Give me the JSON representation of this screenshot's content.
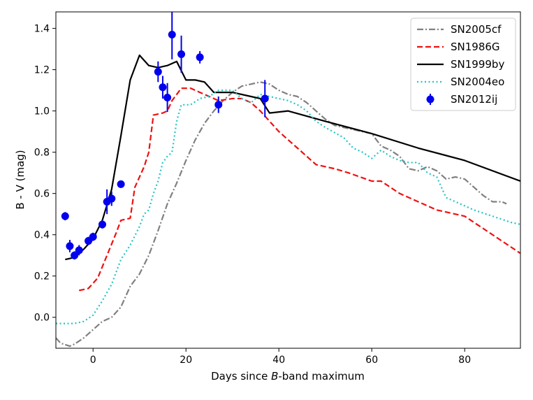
{
  "chart_data": {
    "type": "line",
    "title": "",
    "xlabel_pre": "Days since ",
    "xlabel_em": "B",
    "xlabel_post": "-band maximum",
    "ylabel": "B - V (mag)",
    "xlim": [
      -8,
      92
    ],
    "ylim": [
      -0.15,
      1.48
    ],
    "xticks": [
      0,
      20,
      40,
      60,
      80
    ],
    "yticks": [
      0.0,
      0.2,
      0.4,
      0.6,
      0.8,
      1.0,
      1.2,
      1.4
    ],
    "ytick_labels": [
      "0.0",
      "0.2",
      "0.4",
      "0.6",
      "0.8",
      "1.0",
      "1.2",
      "1.4"
    ],
    "legend_position": "top-right",
    "series": [
      {
        "name": "SN2005cf",
        "color": "#808080",
        "dash": "dashdot",
        "points": [
          [
            -8,
            -0.1
          ],
          [
            -7,
            -0.125
          ],
          [
            -5,
            -0.14
          ],
          [
            -4,
            -0.13
          ],
          [
            -2,
            -0.1
          ],
          [
            0,
            -0.06
          ],
          [
            2,
            -0.02
          ],
          [
            4,
            0.0
          ],
          [
            6,
            0.05
          ],
          [
            7,
            0.1
          ],
          [
            8,
            0.15
          ],
          [
            10,
            0.21
          ],
          [
            12,
            0.3
          ],
          [
            14,
            0.42
          ],
          [
            16,
            0.55
          ],
          [
            18,
            0.65
          ],
          [
            20,
            0.76
          ],
          [
            22,
            0.86
          ],
          [
            24,
            0.94
          ],
          [
            26,
            1.0
          ],
          [
            28,
            1.05
          ],
          [
            30,
            1.09
          ],
          [
            32,
            1.12
          ],
          [
            34,
            1.13
          ],
          [
            36,
            1.14
          ],
          [
            38,
            1.13
          ],
          [
            40,
            1.1
          ],
          [
            42,
            1.08
          ],
          [
            44,
            1.07
          ],
          [
            46,
            1.04
          ],
          [
            48,
            1.0
          ],
          [
            50,
            0.96
          ],
          [
            52,
            0.93
          ],
          [
            54,
            0.92
          ],
          [
            56,
            0.91
          ],
          [
            58,
            0.9
          ],
          [
            60,
            0.89
          ],
          [
            62,
            0.83
          ],
          [
            64,
            0.81
          ],
          [
            66,
            0.78
          ],
          [
            68,
            0.72
          ],
          [
            70,
            0.71
          ],
          [
            72,
            0.73
          ],
          [
            74,
            0.71
          ],
          [
            76,
            0.67
          ],
          [
            78,
            0.68
          ],
          [
            80,
            0.67
          ],
          [
            82,
            0.63
          ],
          [
            84,
            0.59
          ],
          [
            86,
            0.56
          ],
          [
            88,
            0.56
          ],
          [
            89,
            0.55
          ]
        ]
      },
      {
        "name": "SN1986G",
        "color": "#ee1111",
        "dash": "dashed",
        "points": [
          [
            -3,
            0.13
          ],
          [
            -1,
            0.14
          ],
          [
            1,
            0.19
          ],
          [
            3,
            0.3
          ],
          [
            5,
            0.41
          ],
          [
            6,
            0.47
          ],
          [
            8,
            0.48
          ],
          [
            9,
            0.63
          ],
          [
            11,
            0.73
          ],
          [
            12,
            0.8
          ],
          [
            13,
            0.98
          ],
          [
            15,
            0.99
          ],
          [
            16,
            1.0
          ],
          [
            17,
            1.05
          ],
          [
            18,
            1.08
          ],
          [
            19,
            1.11
          ],
          [
            21,
            1.11
          ],
          [
            23,
            1.09
          ],
          [
            25,
            1.07
          ],
          [
            27,
            1.05
          ],
          [
            30,
            1.06
          ],
          [
            32,
            1.06
          ],
          [
            34,
            1.04
          ],
          [
            36,
            1.0
          ],
          [
            38,
            0.95
          ],
          [
            40,
            0.9
          ],
          [
            44,
            0.82
          ],
          [
            48,
            0.74
          ],
          [
            52,
            0.72
          ],
          [
            55,
            0.7
          ],
          [
            60,
            0.66
          ],
          [
            62,
            0.66
          ],
          [
            66,
            0.6
          ],
          [
            70,
            0.56
          ],
          [
            74,
            0.52
          ],
          [
            78,
            0.5
          ],
          [
            80,
            0.49
          ],
          [
            84,
            0.43
          ],
          [
            88,
            0.37
          ],
          [
            92,
            0.31
          ]
        ]
      },
      {
        "name": "SN1999by",
        "color": "#000000",
        "dash": "solid",
        "points": [
          [
            -6,
            0.28
          ],
          [
            -4,
            0.29
          ],
          [
            -2,
            0.33
          ],
          [
            0,
            0.38
          ],
          [
            2,
            0.47
          ],
          [
            4,
            0.62
          ],
          [
            6,
            0.88
          ],
          [
            8,
            1.15
          ],
          [
            10,
            1.27
          ],
          [
            12,
            1.22
          ],
          [
            14,
            1.21
          ],
          [
            16,
            1.22
          ],
          [
            18,
            1.24
          ],
          [
            20,
            1.15
          ],
          [
            22,
            1.15
          ],
          [
            24,
            1.14
          ],
          [
            26,
            1.09
          ],
          [
            30,
            1.09
          ],
          [
            34,
            1.07
          ],
          [
            36,
            1.06
          ],
          [
            38,
            0.99
          ],
          [
            42,
            1.0
          ],
          [
            50,
            0.95
          ],
          [
            60,
            0.89
          ],
          [
            70,
            0.82
          ],
          [
            80,
            0.76
          ],
          [
            92,
            0.66
          ]
        ]
      },
      {
        "name": "SN2004eo",
        "color": "#22c4c4",
        "dash": "dotted",
        "points": [
          [
            -8,
            -0.03
          ],
          [
            -4,
            -0.03
          ],
          [
            -2,
            -0.02
          ],
          [
            0,
            0.01
          ],
          [
            2,
            0.08
          ],
          [
            4,
            0.16
          ],
          [
            6,
            0.28
          ],
          [
            8,
            0.35
          ],
          [
            10,
            0.44
          ],
          [
            11,
            0.5
          ],
          [
            12,
            0.52
          ],
          [
            13,
            0.6
          ],
          [
            14,
            0.66
          ],
          [
            15,
            0.75
          ],
          [
            16,
            0.78
          ],
          [
            17,
            0.8
          ],
          [
            18,
            0.95
          ],
          [
            19,
            1.03
          ],
          [
            21,
            1.03
          ],
          [
            23,
            1.06
          ],
          [
            25,
            1.07
          ],
          [
            27,
            1.1
          ],
          [
            30,
            1.1
          ],
          [
            32,
            1.06
          ],
          [
            34,
            1.04
          ],
          [
            36,
            1.08
          ],
          [
            38,
            1.07
          ],
          [
            40,
            1.06
          ],
          [
            42,
            1.05
          ],
          [
            44,
            1.03
          ],
          [
            46,
            1.0
          ],
          [
            48,
            0.95
          ],
          [
            50,
            0.92
          ],
          [
            54,
            0.87
          ],
          [
            56,
            0.82
          ],
          [
            58,
            0.8
          ],
          [
            60,
            0.77
          ],
          [
            62,
            0.81
          ],
          [
            64,
            0.78
          ],
          [
            66,
            0.76
          ],
          [
            68,
            0.75
          ],
          [
            70,
            0.75
          ],
          [
            72,
            0.7
          ],
          [
            74,
            0.68
          ],
          [
            76,
            0.58
          ],
          [
            78,
            0.56
          ],
          [
            82,
            0.52
          ],
          [
            86,
            0.49
          ],
          [
            90,
            0.46
          ],
          [
            92,
            0.45
          ]
        ]
      }
    ],
    "scatter": {
      "name": "SN2012ij",
      "color": "#0000ee",
      "points": [
        {
          "x": -6,
          "y": 0.49,
          "err": 0.02
        },
        {
          "x": -5,
          "y": 0.345,
          "err": 0.03
        },
        {
          "x": -4,
          "y": 0.3,
          "err": 0.02
        },
        {
          "x": -3,
          "y": 0.325,
          "err": 0.025
        },
        {
          "x": -1,
          "y": 0.37,
          "err": 0.02
        },
        {
          "x": 0,
          "y": 0.39,
          "err": 0.02
        },
        {
          "x": 2,
          "y": 0.45,
          "err": 0.02
        },
        {
          "x": 3,
          "y": 0.56,
          "err": 0.06
        },
        {
          "x": 4,
          "y": 0.575,
          "err": 0.035
        },
        {
          "x": 6,
          "y": 0.645,
          "err": 0.015
        },
        {
          "x": 14,
          "y": 1.19,
          "err": 0.05
        },
        {
          "x": 15,
          "y": 1.115,
          "err": 0.055
        },
        {
          "x": 16,
          "y": 1.065,
          "err": 0.07
        },
        {
          "x": 17,
          "y": 1.37,
          "err": 0.12
        },
        {
          "x": 19,
          "y": 1.275,
          "err": 0.09
        },
        {
          "x": 23,
          "y": 1.26,
          "err": 0.03
        },
        {
          "x": 27,
          "y": 1.03,
          "err": 0.04
        },
        {
          "x": 37,
          "y": 1.06,
          "err": 0.09
        }
      ]
    }
  }
}
